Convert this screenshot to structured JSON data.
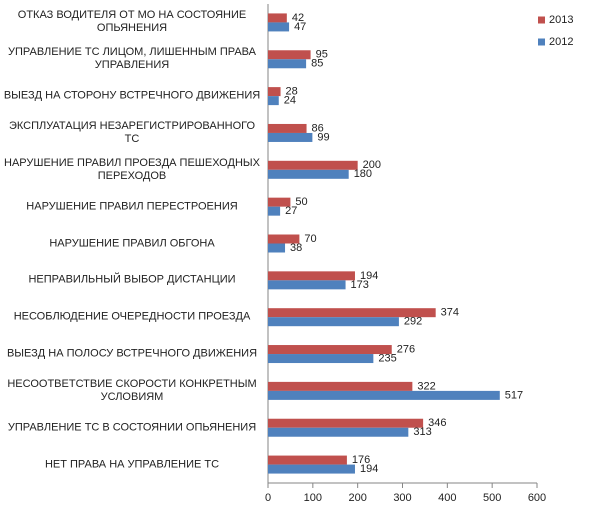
{
  "chart_data": {
    "type": "barh",
    "categories": [
      "ОТКАЗ ВОДИТЕЛЯ ОТ МО НА СОСТОЯНИЕ ОПЬЯНЕНИЯ",
      "УПРАВЛЕНИЕ ТС ЛИЦОМ, ЛИШЕННЫМ ПРАВА УПРАВЛЕНИЯ",
      "ВЫЕЗД НА СТОРОНУ ВСТРЕЧНОГО ДВИЖЕНИЯ",
      "ЭКСПЛУАТАЦИЯ НЕЗАРЕГИСТРИРОВАННОГО ТС",
      "НАРУШЕНИЕ ПРАВИЛ ПРОЕЗДА ПЕШЕХОДНЫХ ПЕРЕХОДОВ",
      "НАРУШЕНИЕ ПРАВИЛ ПЕРЕСТРОЕНИЯ",
      "НАРУШЕНИЕ ПРАВИЛ ОБГОНА",
      "НЕПРАВИЛЬНЫЙ ВЫБОР ДИСТАНЦИИ",
      "НЕСОБЛЮДЕНИЕ ОЧЕРЕДНОСТИ ПРОЕЗДА",
      "ВЫЕЗД НА ПОЛОСУ ВСТРЕЧНОГО ДВИЖЕНИЯ",
      "НЕСООТВЕТСТВИЕ СКОРОСТИ КОНКРЕТНЫМ УСЛОВИЯМ",
      "УПРАВЛЕНИЕ ТС В СОСТОЯНИИ ОПЬЯНЕНИЯ",
      "НЕТ ПРАВА НА УПРАВЛЕНИЕ ТС"
    ],
    "series": [
      {
        "name": "2013",
        "color": "#c0504d",
        "values": [
          42,
          95,
          28,
          86,
          200,
          50,
          70,
          194,
          374,
          276,
          322,
          346,
          176
        ]
      },
      {
        "name": "2012",
        "color": "#4f81bd",
        "values": [
          47,
          85,
          24,
          99,
          180,
          27,
          38,
          173,
          292,
          235,
          517,
          313,
          194
        ]
      }
    ],
    "xlim": [
      0,
      600
    ],
    "xticks": [
      0,
      100,
      200,
      300,
      400,
      500,
      600
    ],
    "legend": "right"
  }
}
